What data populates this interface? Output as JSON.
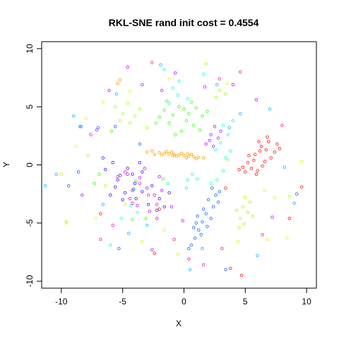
{
  "chart_data": {
    "type": "scatter",
    "title": "RKL-SNE rand init cost = 0.4554",
    "xlabel": "X",
    "ylabel": "Y",
    "xlim": [
      -11.6,
      10.8
    ],
    "ylim": [
      -10.6,
      10.6
    ],
    "xticks": [
      "-10",
      "-5",
      "0",
      "5",
      "10"
    ],
    "yticks": [
      "-10",
      "-5",
      "0",
      "5",
      "10"
    ],
    "grid": false,
    "legend": "none",
    "marker": "open-circle",
    "series": [
      {
        "color": "#FFA500",
        "points": [
          [
            -2.0,
            1.05
          ],
          [
            -1.6,
            1.0
          ],
          [
            -1.2,
            0.95
          ],
          [
            -0.8,
            0.9
          ],
          [
            -0.4,
            0.85
          ],
          [
            0.0,
            0.8
          ],
          [
            0.4,
            0.75
          ],
          [
            0.8,
            0.7
          ],
          [
            1.2,
            0.65
          ],
          [
            -1.8,
            0.85
          ],
          [
            -1.4,
            1.15
          ],
          [
            -1.0,
            1.1
          ],
          [
            -0.6,
            0.75
          ],
          [
            -0.2,
            1.0
          ],
          [
            0.2,
            0.6
          ],
          [
            0.6,
            0.9
          ],
          [
            1.0,
            0.55
          ],
          [
            -3.0,
            1.1
          ],
          [
            -2.4,
            0.9
          ],
          [
            -5.2,
            7.3
          ],
          [
            -5.4,
            7.0
          ],
          [
            1.6,
            0.6
          ],
          [
            -2.6,
            1.2
          ],
          [
            0.3,
            0.95
          ],
          [
            -0.9,
            0.8
          ]
        ]
      },
      {
        "color": "#FF1F1F",
        "points": [
          [
            5.2,
            0.2
          ],
          [
            5.8,
            0.9
          ],
          [
            6.3,
            1.6
          ],
          [
            6.9,
            2.0
          ],
          [
            7.4,
            1.1
          ],
          [
            6.0,
            -0.5
          ],
          [
            5.5,
            -0.3
          ],
          [
            6.6,
            0.3
          ],
          [
            7.1,
            0.6
          ],
          [
            6.2,
            1.2
          ],
          [
            5.0,
            -0.6
          ],
          [
            4.8,
            -0.2
          ],
          [
            5.9,
            -0.8
          ],
          [
            6.8,
            2.4
          ],
          [
            7.6,
            1.8
          ],
          [
            5.3,
            0.8
          ],
          [
            6.4,
            -0.1
          ],
          [
            7.8,
            1.4
          ],
          [
            5.7,
            0.4
          ],
          [
            6.1,
            2.0
          ],
          [
            4.5,
            -0.4
          ],
          [
            6.7,
            1.3
          ],
          [
            8.6,
            -4.6
          ],
          [
            9.6,
            -1.9
          ],
          [
            3.8,
            -8.9
          ],
          [
            -2.4,
            -7.6
          ],
          [
            -6.8,
            -4.2
          ],
          [
            -2.0,
            -3.8
          ],
          [
            3.4,
            -2.0
          ],
          [
            4.7,
            -9.5
          ]
        ]
      },
      {
        "color": "#1F6FFF",
        "points": [
          [
            2.0,
            -3.0
          ],
          [
            2.4,
            -3.6
          ],
          [
            1.8,
            -4.2
          ],
          [
            1.5,
            -4.9
          ],
          [
            1.2,
            -5.6
          ],
          [
            0.9,
            -6.3
          ],
          [
            2.6,
            -2.6
          ],
          [
            2.9,
            -2.3
          ],
          [
            1.6,
            -3.8
          ],
          [
            2.2,
            -4.6
          ],
          [
            1.0,
            -5.0
          ],
          [
            1.4,
            -6.0
          ],
          [
            0.6,
            -6.9
          ],
          [
            2.8,
            -3.2
          ],
          [
            1.9,
            -5.3
          ],
          [
            0.8,
            -5.4
          ],
          [
            2.3,
            -2.0
          ],
          [
            1.1,
            -4.4
          ],
          [
            0.4,
            -7.2
          ],
          [
            -3.6,
            1.8
          ],
          [
            -5.6,
            3.3
          ],
          [
            -7.0,
            3.2
          ],
          [
            -8.6,
            -0.6
          ],
          [
            -9.4,
            -1.8
          ],
          [
            -4.1,
            -2.1
          ],
          [
            -8.4,
            3.3
          ],
          [
            3.4,
            -9.0
          ],
          [
            -5.3,
            -7.2
          ],
          [
            9.2,
            -2.5
          ]
        ]
      },
      {
        "color": "#A8FF1F",
        "points": [
          [
            4.8,
            -3.6
          ],
          [
            5.2,
            -4.1
          ],
          [
            4.6,
            -4.6
          ],
          [
            5.4,
            -3.2
          ],
          [
            4.9,
            -5.1
          ],
          [
            5.6,
            -4.4
          ],
          [
            4.3,
            -3.9
          ],
          [
            5.0,
            -2.8
          ],
          [
            4.5,
            -5.4
          ],
          [
            -5.6,
            5.0
          ],
          [
            -5.0,
            4.4
          ],
          [
            -4.6,
            5.3
          ],
          [
            -4.0,
            4.2
          ],
          [
            -3.6,
            4.8
          ],
          [
            -5.2,
            3.8
          ],
          [
            -4.4,
            3.6
          ],
          [
            2.9,
            6.4
          ],
          [
            3.4,
            6.1
          ],
          [
            2.6,
            5.8
          ],
          [
            -3.0,
            3.2
          ],
          [
            -6.4,
            -1.8
          ],
          [
            -7.8,
            0.8
          ],
          [
            8.6,
            -2.7
          ],
          [
            1.8,
            8.7
          ],
          [
            -9.6,
            -4.9
          ],
          [
            3.6,
            0.4
          ],
          [
            -4.8,
            -3.4
          ]
        ]
      },
      {
        "color": "#3FFF1F",
        "points": [
          [
            -1.6,
            4.7
          ],
          [
            -0.9,
            4.3
          ],
          [
            -0.4,
            5.0
          ],
          [
            0.4,
            4.4
          ],
          [
            1.0,
            4.9
          ],
          [
            1.5,
            4.2
          ],
          [
            -1.2,
            3.6
          ],
          [
            0.2,
            3.8
          ],
          [
            0.8,
            3.4
          ],
          [
            -0.2,
            2.9
          ],
          [
            1.3,
            3.0
          ],
          [
            -2.0,
            4.1
          ],
          [
            0.6,
            5.4
          ],
          [
            -0.7,
            2.6
          ],
          [
            1.9,
            4.6
          ],
          [
            -1.4,
            5.5
          ],
          [
            0.0,
            4.8
          ],
          [
            -2.3,
            3.6
          ],
          [
            -1.7,
            -1.2
          ],
          [
            -4.2,
            -4.7
          ],
          [
            -3.1,
            -4.6
          ],
          [
            -6.9,
            -0.8
          ],
          [
            -7.3,
            -1.6
          ],
          [
            -5.9,
            2.9
          ],
          [
            -3.9,
            -1.4
          ]
        ]
      },
      {
        "color": "#1FFFDF",
        "points": [
          [
            -1.2,
            5.3
          ],
          [
            -0.5,
            6.0
          ],
          [
            0.3,
            5.7
          ],
          [
            -0.9,
            6.6
          ],
          [
            3.2,
            3.4
          ],
          [
            3.6,
            2.6
          ],
          [
            4.0,
            3.8
          ],
          [
            3.0,
            1.9
          ],
          [
            3.8,
            1.2
          ],
          [
            2.6,
            1.3
          ],
          [
            3.4,
            0.6
          ],
          [
            3.2,
            -0.5
          ],
          [
            0.7,
            -0.8
          ],
          [
            0.3,
            -1.3
          ],
          [
            1.1,
            -1.2
          ],
          [
            2.7,
            -1.3
          ],
          [
            0.2,
            -2.0
          ],
          [
            -1.3,
            -1.6
          ],
          [
            -5.1,
            -4.6
          ],
          [
            -3.8,
            -4.1
          ],
          [
            -4.3,
            -3.5
          ],
          [
            1.6,
            7.8
          ],
          [
            -1.6,
            8.2
          ],
          [
            -6.0,
            -6.9
          ],
          [
            -0.4,
            7.2
          ],
          [
            2.2,
            -1.6
          ]
        ]
      },
      {
        "color": "#4A1FFF",
        "points": [
          [
            -6.4,
            -0.4
          ],
          [
            -5.8,
            0.2
          ],
          [
            -5.2,
            -0.9
          ],
          [
            -4.6,
            -0.3
          ],
          [
            -4.0,
            -1.6
          ],
          [
            -3.4,
            -0.6
          ],
          [
            -5.6,
            -1.9
          ],
          [
            -4.8,
            -2.4
          ],
          [
            -3.9,
            -2.9
          ],
          [
            -6.0,
            -2.6
          ],
          [
            -2.6,
            -1.8
          ],
          [
            -2.0,
            -2.9
          ],
          [
            -1.6,
            -3.6
          ],
          [
            -2.9,
            -3.4
          ],
          [
            -3.4,
            -2.3
          ],
          [
            -5.0,
            -3.0
          ],
          [
            -4.2,
            -0.8
          ],
          [
            -6.6,
            0.6
          ],
          [
            -3.6,
            0.2
          ],
          [
            -1.2,
            -2.4
          ],
          [
            -2.2,
            -3.9
          ],
          [
            -5.4,
            -1.3
          ]
        ]
      },
      {
        "color": "#BF1FFF",
        "points": [
          [
            2.4,
            1.6
          ],
          [
            2.8,
            2.3
          ],
          [
            3.0,
            2.9
          ],
          [
            2.2,
            2.6
          ],
          [
            2.5,
            3.3
          ],
          [
            1.8,
            1.8
          ],
          [
            2.1,
            2.1
          ],
          [
            -3.6,
            -1.1
          ],
          [
            -3.0,
            -2.0
          ],
          [
            -4.2,
            -2.2
          ],
          [
            -2.4,
            -2.6
          ],
          [
            -3.2,
            -0.3
          ],
          [
            -1.8,
            -2.2
          ],
          [
            -4.6,
            -0.8
          ],
          [
            -2.8,
            -4.0
          ],
          [
            -3.8,
            -3.5
          ],
          [
            -2.0,
            -1.0
          ],
          [
            -4.4,
            -2.9
          ],
          [
            -1.0,
            -3.6
          ],
          [
            -2.2,
            -4.6
          ],
          [
            -3.4,
            6.9
          ],
          [
            -1.8,
            6.4
          ],
          [
            -0.7,
            7.9
          ],
          [
            1.7,
            6.7
          ],
          [
            -4.6,
            8.4
          ],
          [
            4.0,
            6.9
          ],
          [
            -8.3,
            -2.6
          ],
          [
            -7.1,
            3.0
          ],
          [
            -0.1,
            -4.8
          ],
          [
            -2.6,
            -7.3
          ],
          [
            7.2,
            -4.5
          ],
          [
            5.9,
            5.6
          ],
          [
            -6.1,
            6.4
          ]
        ]
      },
      {
        "color": "#FF1FB8",
        "points": [
          [
            -4.8,
            -0.6
          ],
          [
            -3.6,
            -1.6
          ],
          [
            -2.9,
            -2.6
          ],
          [
            -5.4,
            -1.0
          ],
          [
            -2.2,
            -3.4
          ],
          [
            -4.2,
            -3.3
          ],
          [
            -0.8,
            -6.4
          ],
          [
            1.6,
            -8.6
          ],
          [
            6.4,
            -6.0
          ],
          [
            -7.6,
            2.6
          ],
          [
            4.6,
            8.0
          ],
          [
            -5.8,
            -5.2
          ],
          [
            0.4,
            -8.1
          ],
          [
            2.9,
            7.4
          ],
          [
            -6.8,
            -6.4
          ],
          [
            8.0,
            3.4
          ],
          [
            3.1,
            -7.2
          ],
          [
            -2.6,
            8.8
          ]
        ]
      },
      {
        "color": "#D8FF1F",
        "points": [
          [
            -8.8,
            1.6
          ],
          [
            -8.0,
            4.0
          ],
          [
            -6.6,
            5.4
          ],
          [
            -7.2,
            -4.6
          ],
          [
            -9.6,
            -5.0
          ],
          [
            -3.4,
            -6.6
          ],
          [
            -1.6,
            -5.6
          ],
          [
            6.6,
            -2.2
          ],
          [
            7.4,
            -2.8
          ],
          [
            6.8,
            -6.4
          ],
          [
            8.4,
            -6.3
          ],
          [
            3.5,
            7.0
          ],
          [
            -1.2,
            7.4
          ],
          [
            -4.4,
            6.3
          ],
          [
            -10.0,
            -0.8
          ],
          [
            9.6,
            0.3
          ],
          [
            -0.5,
            -7.7
          ],
          [
            4.4,
            -6.6
          ]
        ]
      },
      {
        "color": "#1FB8FF",
        "points": [
          [
            -10.4,
            -0.8
          ],
          [
            -9.0,
            4.2
          ],
          [
            -5.5,
            6.1
          ],
          [
            -4.5,
            -5.9
          ],
          [
            0.5,
            -9.0
          ],
          [
            6.0,
            -7.8
          ],
          [
            8.2,
            -0.2
          ],
          [
            7.0,
            4.8
          ],
          [
            2.7,
            6.9
          ],
          [
            -8.5,
            3.3
          ],
          [
            -3.0,
            -5.2
          ],
          [
            1.5,
            -7.2
          ],
          [
            3.7,
            3.2
          ],
          [
            -6.6,
            -3.4
          ],
          [
            9.0,
            -3.3
          ],
          [
            -1.9,
            8.6
          ],
          [
            4.6,
            4.4
          ],
          [
            -11.3,
            -1.8
          ]
        ]
      }
    ]
  }
}
